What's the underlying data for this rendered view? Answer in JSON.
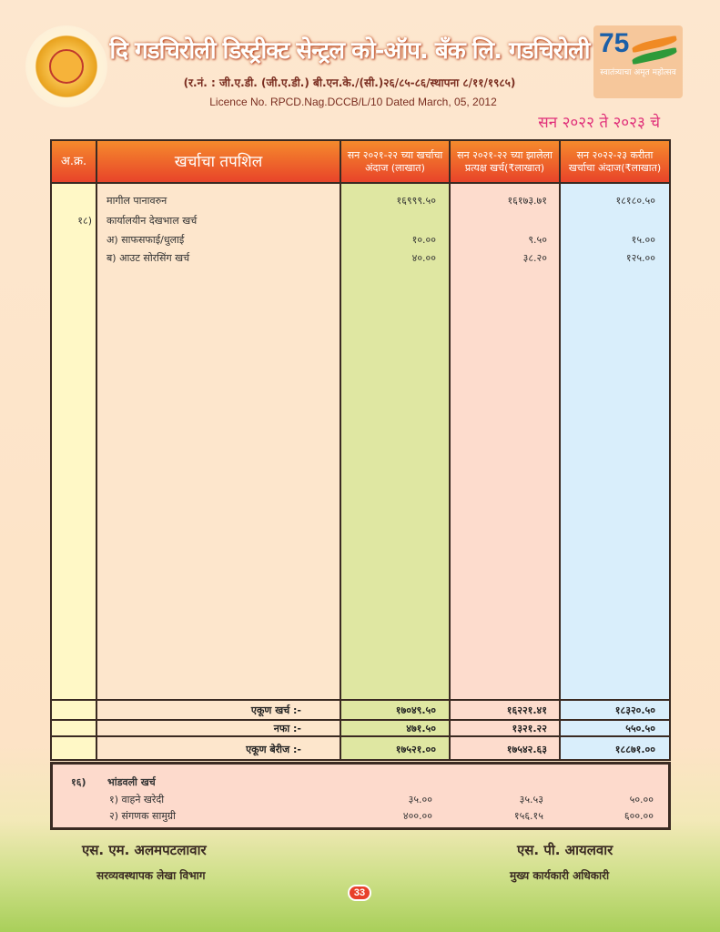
{
  "header": {
    "title": "दि गडचिरोली डिस्ट्रीक्ट सेन्ट्रल को-ऑप. बँक लि. गडचिरोली",
    "registration": "(र.नं. : जी.ए.डी. (जी.ए.डी.) बी.एन.के./(सी.)२६/८५-८६/स्थापना ८/११/१९८५)",
    "licence": "Licence No. RPCD.Nag.DCCB/L/10 Dated March, 05, 2012",
    "year_label": "सन २०२२ ते २०२३ चे",
    "emblem": {
      "number": "75",
      "text": "स्वातंत्र्याचा अमृत महोत्सव"
    }
  },
  "table": {
    "headers": [
      "अ.क्र.",
      "खर्चाचा तपशिल",
      "सन २०२१-२२ च्या खर्चाचा अंदाज (लाखात)",
      "सन २०२१-२२ च्या झालेला प्रत्यक्ष खर्च(₹लाखात)",
      "सन २०२२-२३ करीता खर्चाचा अंदाज(₹लाखात)"
    ],
    "rows": [
      {
        "no": "",
        "desc": "मागील पानावरुन",
        "c1": "१६९९९.५०",
        "c2": "१६१७३.७१",
        "c3": "१८१८०.५०"
      },
      {
        "no": "१८)",
        "desc": "कार्यालयीन देखभाल खर्च",
        "c1": "",
        "c2": "",
        "c3": ""
      },
      {
        "no": "",
        "desc": "अ) साफसफाई/धुलाई",
        "c1": "१०.००",
        "c2": "९.५०",
        "c3": "१५.००"
      },
      {
        "no": "",
        "desc": "ब) आउट सोरसिंग खर्च",
        "c1": "४०.००",
        "c2": "३८.२०",
        "c3": "१२५.००"
      }
    ],
    "totals": [
      {
        "label": "एकूण खर्च :-",
        "c1": "१७०४९.५०",
        "c2": "१६२२१.४१",
        "c3": "१८३२०.५०"
      },
      {
        "label": "नफा :-",
        "c1": "४७१.५०",
        "c2": "१३२१.२२",
        "c3": "५५०.५०"
      },
      {
        "label": "एकूण बेरीज :-",
        "c1": "१७५२१.००",
        "c2": "१७५४२.६३",
        "c3": "१८८७१.००"
      }
    ]
  },
  "capital": {
    "no": "१६)",
    "title": "भांडवली खर्च",
    "rows": [
      {
        "desc": "१) वाहने खरेदी",
        "c1": "३५.००",
        "c2": "३५.५३",
        "c3": "५०.००"
      },
      {
        "desc": "२) संगणक सामुग्री",
        "c1": "४००.००",
        "c2": "१५६.१५",
        "c3": "६००.००"
      }
    ]
  },
  "signatures": [
    {
      "name": "एस. एम. अलमपटलावार",
      "role": "सरव्यवस्थापक लेखा विभाग"
    },
    {
      "name": "एस. पी. आयलवार",
      "role": "मुख्य कार्यकारी अधिकारी"
    }
  ],
  "page_number": "33"
}
